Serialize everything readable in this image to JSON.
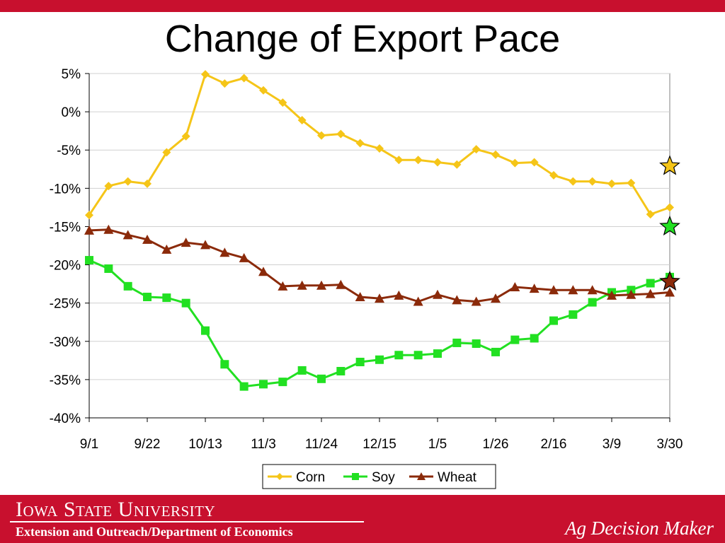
{
  "colors": {
    "brand_red": "#c8102e",
    "corn": "#f5c518",
    "soy": "#22e022",
    "wheat": "#8b2a0a",
    "grid": "#d0d0d0"
  },
  "slide": {
    "title": "Change of Export Pace"
  },
  "footer": {
    "university": "Iowa State University",
    "department": "Extension and Outreach/Department of Economics",
    "brand": "Ag Decision Maker"
  },
  "chart_data": {
    "type": "line",
    "title": "",
    "xlabel": "",
    "ylabel": "",
    "ylim": [
      -40,
      5
    ],
    "y_ticks": [
      5,
      0,
      -5,
      -10,
      -15,
      -20,
      -25,
      -30,
      -35,
      -40
    ],
    "y_tick_labels": [
      "5%",
      "0%",
      "-5%",
      "-10%",
      "-15%",
      "-20%",
      "-25%",
      "-30%",
      "-35%",
      "-40%"
    ],
    "x_tick_labels": [
      "9/1",
      "9/22",
      "10/13",
      "11/3",
      "11/24",
      "12/15",
      "1/5",
      "1/26",
      "2/16",
      "3/9",
      "3/30"
    ],
    "x_tick_every": 3,
    "grid": "horizontal",
    "legend": "bottom-center",
    "series": [
      {
        "name": "Corn",
        "marker": "diamond",
        "color": "#f5c518",
        "values": [
          -13.5,
          -9.7,
          -9.1,
          -9.4,
          -5.3,
          -3.2,
          4.9,
          3.7,
          4.4,
          2.8,
          1.2,
          -1.1,
          -3.1,
          -2.9,
          -4.1,
          -4.8,
          -6.3,
          -6.3,
          -6.6,
          -6.9,
          -4.9,
          -5.6,
          -6.7,
          -6.6,
          -8.3,
          -9.1,
          -9.1,
          -9.4,
          -9.3,
          -13.4,
          -12.5
        ]
      },
      {
        "name": "Soy",
        "marker": "square",
        "color": "#22e022",
        "values": [
          -19.4,
          -20.5,
          -22.8,
          -24.2,
          -24.3,
          -25.0,
          -28.6,
          -33.0,
          -35.9,
          -35.6,
          -35.3,
          -33.8,
          -34.9,
          -33.9,
          -32.7,
          -32.4,
          -31.8,
          -31.8,
          -31.6,
          -30.2,
          -30.3,
          -31.4,
          -29.8,
          -29.6,
          -27.3,
          -26.5,
          -24.9,
          -23.6,
          -23.3,
          -22.4,
          -21.6
        ]
      },
      {
        "name": "Wheat",
        "marker": "triangle",
        "color": "#8b2a0a",
        "values": [
          -15.5,
          -15.4,
          -16.1,
          -16.7,
          -18.0,
          -17.1,
          -17.4,
          -18.4,
          -19.1,
          -20.9,
          -22.8,
          -22.7,
          -22.7,
          -22.6,
          -24.2,
          -24.4,
          -24.0,
          -24.8,
          -23.9,
          -24.6,
          -24.8,
          -24.4,
          -22.9,
          -23.1,
          -23.3,
          -23.3,
          -23.3,
          -24.0,
          -23.9,
          -23.8,
          -23.6
        ]
      }
    ],
    "star_points": [
      {
        "series": "Corn",
        "index": 30,
        "value": -7.1,
        "color": "#f5c518"
      },
      {
        "series": "Soy",
        "index": 30,
        "value": -15.0,
        "color": "#22e022"
      },
      {
        "series": "Wheat",
        "index": 30,
        "value": -22.2,
        "color": "#8b2a0a"
      }
    ]
  }
}
